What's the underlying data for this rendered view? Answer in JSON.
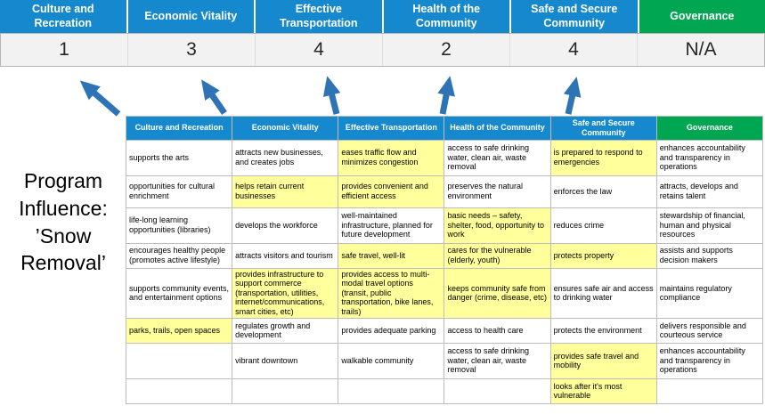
{
  "program_label": "Program Influence: ’Snow Removal’",
  "colors": {
    "header_blue": "#1689CE",
    "header_green": "#00A651",
    "highlight_yellow": "#FFFF9C",
    "arrow_blue": "#2E74B5",
    "score_bg": "#F2F2F2"
  },
  "summary": {
    "categories": [
      {
        "label": "Culture and Recreation",
        "score": "1",
        "theme": "blue"
      },
      {
        "label": "Economic Vitality",
        "score": "3",
        "theme": "blue"
      },
      {
        "label": "Effective Transportation",
        "score": "4",
        "theme": "blue"
      },
      {
        "label": "Health of the Community",
        "score": "2",
        "theme": "blue"
      },
      {
        "label": "Safe and Secure Community",
        "score": "4",
        "theme": "blue"
      },
      {
        "label": "Governance",
        "score": "N/A",
        "theme": "green"
      }
    ]
  },
  "matrix": {
    "headers": [
      {
        "label": "Culture and Recreation",
        "theme": "blue"
      },
      {
        "label": "Economic Vitality",
        "theme": "blue"
      },
      {
        "label": "Effective Transportation",
        "theme": "blue"
      },
      {
        "label": "Health of the Community",
        "theme": "blue"
      },
      {
        "label": "Safe and Secure Community",
        "theme": "blue"
      },
      {
        "label": "Governance",
        "theme": "green"
      }
    ],
    "rows": [
      [
        {
          "t": "supports the arts"
        },
        {
          "t": "attracts new businesses, and creates jobs"
        },
        {
          "t": "eases traffic flow and minimizes congestion",
          "h": true
        },
        {
          "t": "access to safe drinking water, clean air, waste removal"
        },
        {
          "t": "is prepared to respond to emergencies",
          "h": true
        },
        {
          "t": "enhances accountability and transparency in operations"
        }
      ],
      [
        {
          "t": "opportunities for cultural enrichment"
        },
        {
          "t": "helps retain current businesses",
          "h": true
        },
        {
          "t": "provides convenient and efficient access",
          "h": true
        },
        {
          "t": "preserves the natural environment"
        },
        {
          "t": "enforces the law"
        },
        {
          "t": "attracts, develops and retains talent"
        }
      ],
      [
        {
          "t": "life-long learning opportunities (libraries)"
        },
        {
          "t": "develops the workforce"
        },
        {
          "t": "well-maintained infrastructure, planned for future development"
        },
        {
          "t": "basic needs – safety, shelter, food, opportunity to work",
          "h": true
        },
        {
          "t": "reduces crime"
        },
        {
          "t": "stewardship of financial, human and physical resources"
        }
      ],
      [
        {
          "t": "encourages healthy people (promotes active lifestyle)"
        },
        {
          "t": "attracts visitors and tourism"
        },
        {
          "t": "safe travel, well-lit",
          "h": true
        },
        {
          "t": "cares for the vulnerable (elderly, youth)",
          "h": true
        },
        {
          "t": "protects property",
          "h": true
        },
        {
          "t": "assists and supports decision makers"
        }
      ],
      [
        {
          "t": "supports community events, and entertainment options"
        },
        {
          "t": "provides infrastructure to support commerce (transportation, utilities, internet/communications, smart cities, etc)",
          "h": true
        },
        {
          "t": "provides access to multi-modal travel options (transit, public transportation, bike lanes, trails)",
          "h": true
        },
        {
          "t": "keeps community safe from danger (crime, disease, etc)",
          "h": true
        },
        {
          "t": "ensures safe air and access to drinking water"
        },
        {
          "t": "maintains regulatory compliance"
        }
      ],
      [
        {
          "t": "parks, trails, open spaces",
          "h": true
        },
        {
          "t": "regulates growth and development"
        },
        {
          "t": "provides adequate parking"
        },
        {
          "t": "access to health care"
        },
        {
          "t": "protects the environment"
        },
        {
          "t": "delivers responsible and courteous service"
        }
      ],
      [
        {
          "t": ""
        },
        {
          "t": "vibrant downtown"
        },
        {
          "t": "walkable community"
        },
        {
          "t": "access to safe drinking water, clean air, waste removal"
        },
        {
          "t": "provides safe travel and mobility",
          "h": true
        },
        {
          "t": "enhances accountability and transparency in operations"
        }
      ],
      [
        {
          "t": ""
        },
        {
          "t": ""
        },
        {
          "t": ""
        },
        {
          "t": ""
        },
        {
          "t": "looks after it's most vulnerable",
          "h": true
        },
        {
          "t": ""
        }
      ]
    ]
  }
}
